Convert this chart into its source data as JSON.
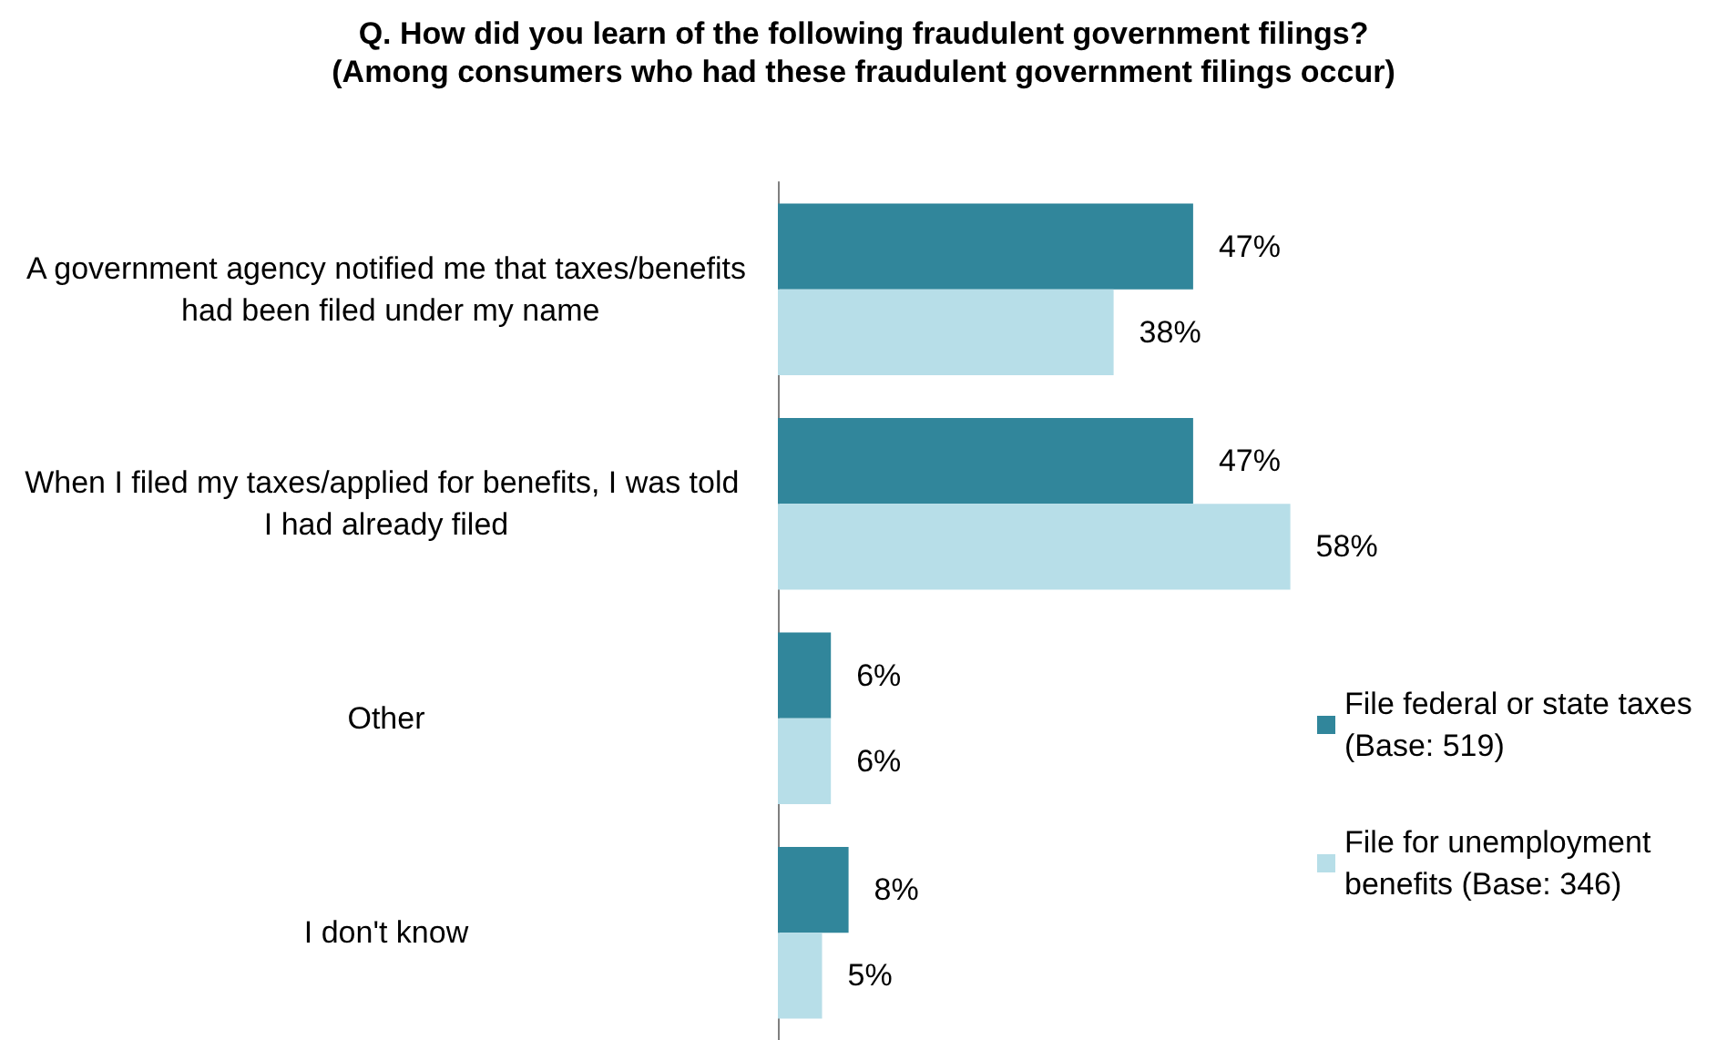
{
  "chart_data": {
    "type": "bar",
    "orientation": "horizontal",
    "title": "Q. How did you learn of the following fraudulent government filings?",
    "subtitle": "(Among consumers who had these fraudulent government filings occur)",
    "categories": [
      "A government agency notified me that taxes/benefits had been filed under my name",
      "When I filed my taxes/applied for benefits, I was told I had already filed",
      "Other",
      "I don't know"
    ],
    "series": [
      {
        "name": "File federal or state taxes (Base: 519)",
        "color": "#31869b",
        "values": [
          47,
          47,
          6,
          8
        ],
        "value_labels": [
          "47%",
          "47%",
          "6%",
          "8%"
        ]
      },
      {
        "name": "File for unemployment benefits (Base: 346)",
        "color": "#b7dee8",
        "values": [
          38,
          58,
          6,
          5
        ],
        "value_labels": [
          "38%",
          "58%",
          "6%",
          "5%"
        ]
      }
    ],
    "legend": "right",
    "grid": false,
    "tick_labels": "y"
  }
}
